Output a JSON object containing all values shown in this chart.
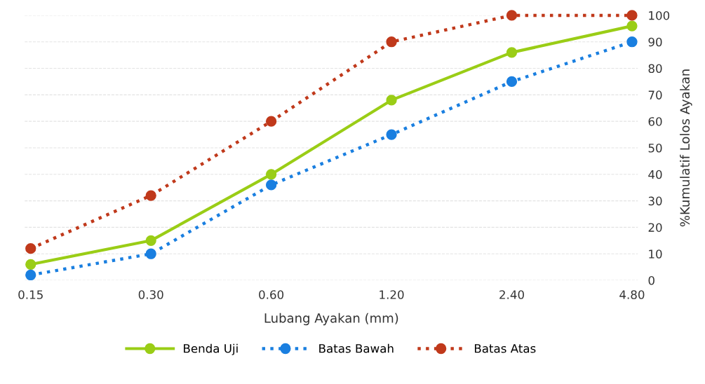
{
  "chart_data": {
    "type": "line",
    "xlabel": "Lubang Ayakan (mm)",
    "y2label": "%Kumulatif Lolos Ayakan",
    "categories": [
      "0.15",
      "0.30",
      "0.60",
      "1.20",
      "2.40",
      "4.80"
    ],
    "series": [
      {
        "name": "Benda Uji",
        "color": "#9acd16",
        "values": [
          6,
          15,
          40,
          68,
          86,
          96
        ],
        "line_style": "solid",
        "marker": "circle",
        "axis": "y2"
      },
      {
        "name": "Batas Bawah",
        "color": "#1a7fe0",
        "values": [
          2,
          10,
          36,
          55,
          75,
          90
        ],
        "line_style": "dotted",
        "marker": "circle",
        "axis": "y2"
      },
      {
        "name": "Batas Atas",
        "color": "#c0391b",
        "values": [
          12,
          32,
          60,
          90,
          100,
          100
        ],
        "line_style": "dotted",
        "marker": "circle",
        "axis": "y2"
      }
    ],
    "y2lim": [
      0,
      100
    ],
    "y2ticks": [
      0,
      10,
      20,
      30,
      40,
      50,
      60,
      70,
      80,
      90,
      100
    ],
    "grid": "y",
    "legend": "bottom"
  }
}
